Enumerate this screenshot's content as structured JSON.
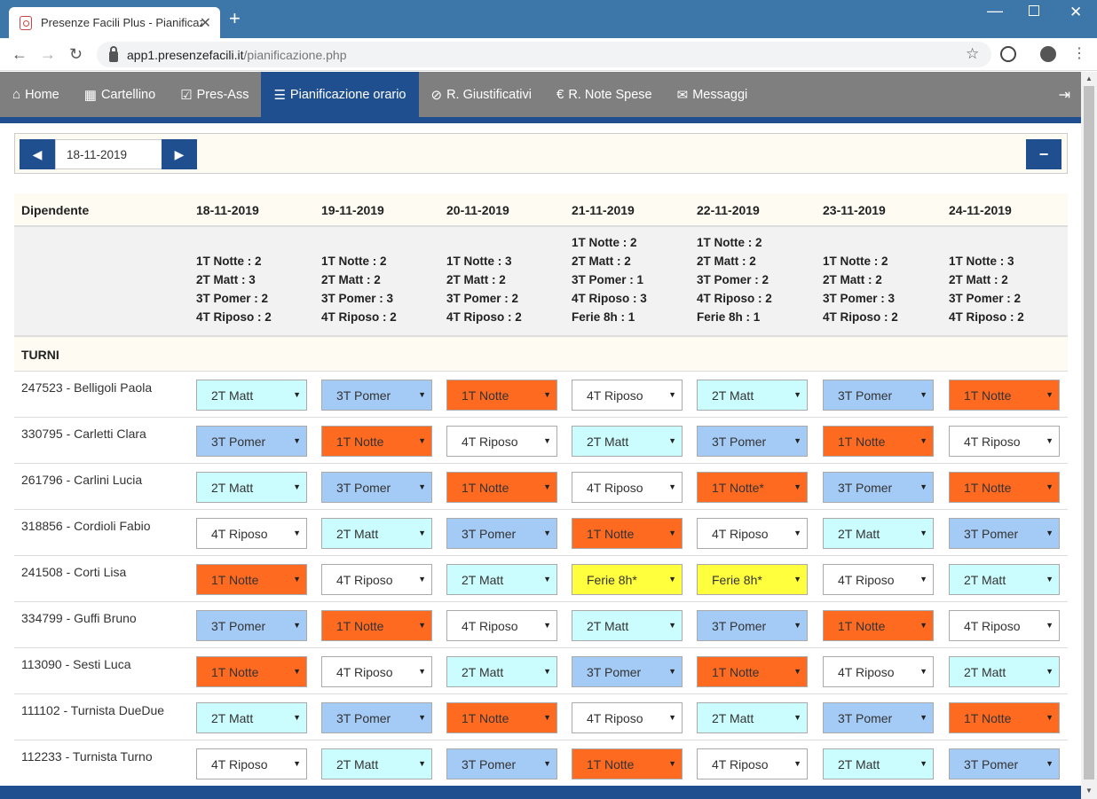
{
  "browser": {
    "tab_title": "Presenze Facili Plus - Pianificazione",
    "tab_close": "✕",
    "new_tab": "+",
    "url_domain": "app1.presenzefacili.it",
    "url_path": "/pianificazione.php"
  },
  "nav": {
    "items": [
      {
        "label": "Home",
        "icon": "home-icon"
      },
      {
        "label": "Cartellino",
        "icon": "calendar-icon"
      },
      {
        "label": "Pres-Ass",
        "icon": "check-square-icon"
      },
      {
        "label": "Pianificazione orario",
        "icon": "list-icon"
      },
      {
        "label": "R. Giustificativi",
        "icon": "paperclip-icon"
      },
      {
        "label": "R. Note Spese",
        "icon": "euro-icon"
      },
      {
        "label": "Messaggi",
        "icon": "envelope-icon"
      }
    ],
    "active": "Pianificazione orario"
  },
  "date_picker": {
    "value": "18-11-2019",
    "prev": "◀",
    "next": "▶",
    "collapse": "−"
  },
  "table": {
    "header_employee": "Dipendente",
    "dates": [
      "18-11-2019",
      "19-11-2019",
      "20-11-2019",
      "21-11-2019",
      "22-11-2019",
      "23-11-2019",
      "24-11-2019"
    ],
    "summary": [
      [
        "1T Notte : 2",
        "2T Matt : 3",
        "3T Pomer : 2",
        "4T Riposo : 2"
      ],
      [
        "1T Notte : 2",
        "2T Matt : 2",
        "3T Pomer : 3",
        "4T Riposo : 2"
      ],
      [
        "1T Notte : 3",
        "2T Matt : 2",
        "3T Pomer : 2",
        "4T Riposo : 2"
      ],
      [
        "1T Notte : 2",
        "2T Matt : 2",
        "3T Pomer : 1",
        "4T Riposo : 3",
        "Ferie 8h : 1"
      ],
      [
        "1T Notte : 2",
        "2T Matt : 2",
        "3T Pomer : 2",
        "4T Riposo : 2",
        "Ferie 8h : 1"
      ],
      [
        "1T Notte : 2",
        "2T Matt : 2",
        "3T Pomer : 3",
        "4T Riposo : 2"
      ],
      [
        "1T Notte : 3",
        "2T Matt : 2",
        "3T Pomer : 2",
        "4T Riposo : 2"
      ]
    ],
    "section_label": "TURNI",
    "employees": [
      {
        "name": "247523 - Belligoli Paola",
        "shifts": [
          "2T Matt",
          "3T Pomer",
          "1T Notte",
          "4T Riposo",
          "2T Matt",
          "3T Pomer",
          "1T Notte"
        ]
      },
      {
        "name": "330795 - Carletti Clara",
        "shifts": [
          "3T Pomer",
          "1T Notte",
          "4T Riposo",
          "2T Matt",
          "3T Pomer",
          "1T Notte",
          "4T Riposo"
        ]
      },
      {
        "name": "261796 - Carlini Lucia",
        "shifts": [
          "2T Matt",
          "3T Pomer",
          "1T Notte",
          "4T Riposo",
          "1T Notte*",
          "3T Pomer",
          "1T Notte"
        ]
      },
      {
        "name": "318856 - Cordioli Fabio",
        "shifts": [
          "4T Riposo",
          "2T Matt",
          "3T Pomer",
          "1T Notte",
          "4T Riposo",
          "2T Matt",
          "3T Pomer"
        ]
      },
      {
        "name": "241508 - Corti Lisa",
        "shifts": [
          "1T Notte",
          "4T Riposo",
          "2T Matt",
          "Ferie 8h*",
          "Ferie 8h*",
          "4T Riposo",
          "2T Matt"
        ]
      },
      {
        "name": "334799 - Guffi Bruno",
        "shifts": [
          "3T Pomer",
          "1T Notte",
          "4T Riposo",
          "2T Matt",
          "3T Pomer",
          "1T Notte",
          "4T Riposo"
        ]
      },
      {
        "name": "113090 - Sesti Luca",
        "shifts": [
          "1T Notte",
          "4T Riposo",
          "2T Matt",
          "3T Pomer",
          "1T Notte",
          "4T Riposo",
          "2T Matt"
        ]
      },
      {
        "name": "111102 - Turnista DueDue",
        "shifts": [
          "2T Matt",
          "3T Pomer",
          "1T Notte",
          "4T Riposo",
          "2T Matt",
          "3T Pomer",
          "1T Notte"
        ]
      },
      {
        "name": "112233 - Turnista Turno",
        "shifts": [
          "4T Riposo",
          "2T Matt",
          "3T Pomer",
          "1T Notte",
          "4T Riposo",
          "2T Matt",
          "3T Pomer"
        ]
      }
    ]
  },
  "colors": {
    "notte": "#ff6a21",
    "matt": "#cbfdfe",
    "pomer": "#a4cbf6",
    "riposo": "#ffffff",
    "ferie": "#ffff3d",
    "primary": "#1f4f8f",
    "nav_bg": "#7f7f7f"
  }
}
